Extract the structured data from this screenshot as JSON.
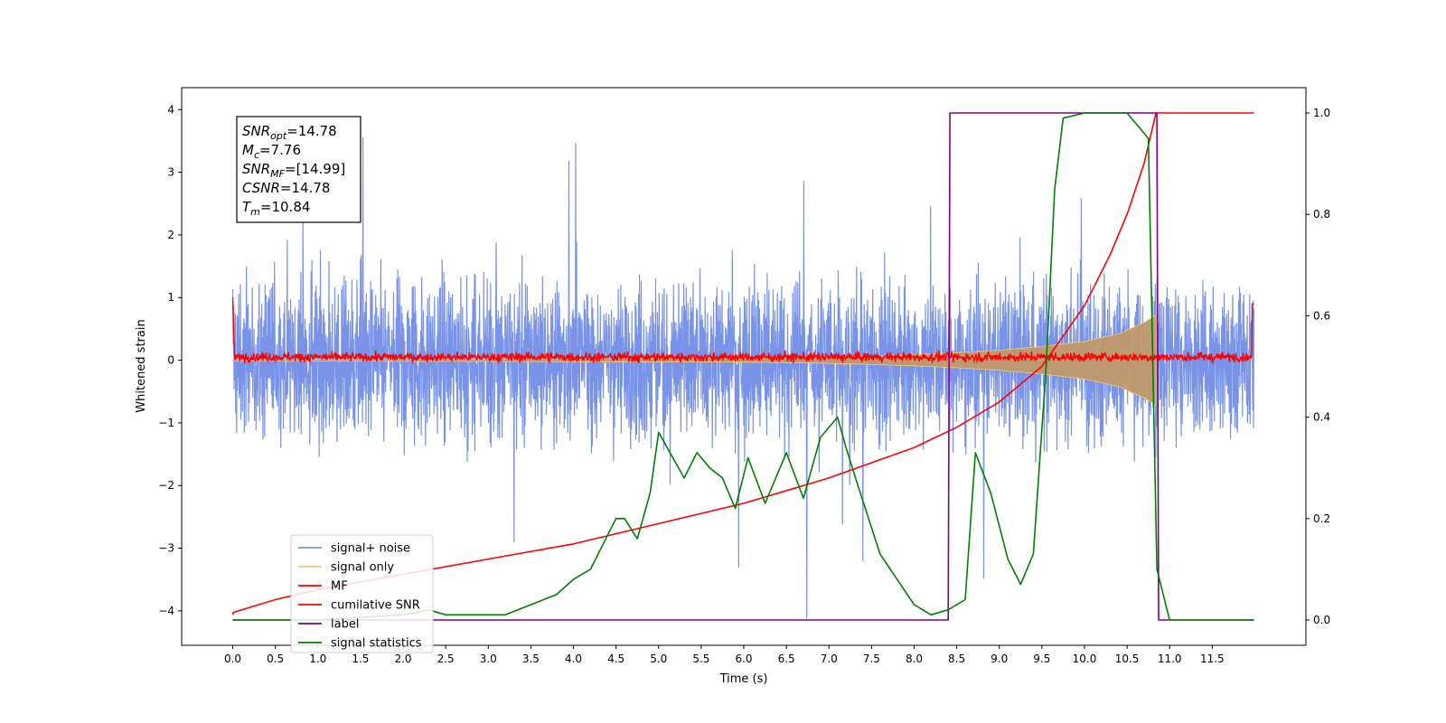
{
  "chart_data": {
    "type": "line",
    "xlabel": "Time (s)",
    "ylabel": "Whitened strain",
    "xlim": [
      -0.6,
      12.6
    ],
    "ylim": [
      -4.55,
      4.35
    ],
    "ylim_right": [
      -0.05,
      1.05
    ],
    "x_ticks": [
      0.0,
      0.5,
      1.0,
      1.5,
      2.0,
      2.5,
      3.0,
      3.5,
      4.0,
      4.5,
      5.0,
      5.5,
      6.0,
      6.5,
      7.0,
      7.5,
      8.0,
      8.5,
      9.0,
      9.5,
      10.0,
      10.5,
      11.0,
      11.5
    ],
    "x_tick_labels": [
      "0.0",
      "0.5",
      "1.0",
      "1.5",
      "2.0",
      "2.5",
      "3.0",
      "3.5",
      "4.0",
      "4.5",
      "5.0",
      "5.5",
      "6.0",
      "6.5",
      "7.0",
      "7.5",
      "8.0",
      "8.5",
      "9.0",
      "9.5",
      "10.0",
      "10.5",
      "11.0",
      "11.5"
    ],
    "y_ticks": [
      4,
      3,
      2,
      1,
      0,
      -1,
      -2,
      -3,
      -4
    ],
    "y_tick_labels": [
      "4",
      "3",
      "2",
      "1",
      "0",
      "−1",
      "−2",
      "−3",
      "−4"
    ],
    "y2_ticks": [
      1.0,
      0.8,
      0.6,
      0.4,
      0.2,
      0.0
    ],
    "y2_tick_labels": [
      "1.0",
      "0.8",
      "0.6",
      "0.4",
      "0.2",
      "0.0"
    ],
    "grid": false,
    "legend_placement": "lower-left",
    "annotation": {
      "lines": [
        {
          "base": "SNR",
          "sub": "opt",
          "rest": "=14.78"
        },
        {
          "base": "M",
          "sub": "c",
          "rest": "=7.76"
        },
        {
          "base": "SNR",
          "sub": "MF",
          "rest": "=[14.99]"
        },
        {
          "base": "CSNR",
          "sub": "",
          "rest": "=14.78"
        },
        {
          "base": "T",
          "sub": "m",
          "rest": "=10.84"
        }
      ]
    },
    "series": [
      {
        "name": "signal+ noise",
        "axis": "left",
        "color": "#7893e8",
        "note_envelope": {
          "upper_typical": 1.3,
          "lower_typical": -1.3,
          "peak_max": 3.98,
          "peak_min": -4.15
        }
      },
      {
        "name": "signal only",
        "axis": "left",
        "color": "#f5c97a",
        "envelope_x": [
          0.0,
          6.0,
          7.0,
          8.0,
          8.5,
          9.0,
          9.5,
          10.0,
          10.4,
          10.7,
          10.84
        ],
        "envelope_amp": [
          0.01,
          0.03,
          0.05,
          0.09,
          0.12,
          0.16,
          0.22,
          0.3,
          0.42,
          0.6,
          0.72
        ]
      },
      {
        "name": "MF",
        "axis": "left",
        "color": "#ff0000",
        "note_level": 0.05
      },
      {
        "name": "cumilative SNR",
        "axis": "right",
        "color": "#ff0000",
        "x": [
          0.0,
          0.01,
          0.5,
          1.0,
          2.0,
          3.0,
          4.0,
          5.0,
          6.0,
          7.0,
          8.0,
          8.5,
          9.0,
          9.5,
          10.0,
          10.3,
          10.5,
          10.7,
          10.84,
          11.0,
          11.5,
          11.99
        ],
        "values": [
          0.01,
          0.015,
          0.04,
          0.06,
          0.09,
          0.12,
          0.15,
          0.19,
          0.23,
          0.28,
          0.34,
          0.38,
          0.43,
          0.5,
          0.62,
          0.72,
          0.8,
          0.9,
          1.0,
          1.0,
          1.0,
          1.0
        ]
      },
      {
        "name": "label",
        "axis": "right",
        "color": "#800080",
        "x": [
          0.0,
          8.4,
          8.42,
          10.85,
          10.87,
          11.99
        ],
        "values": [
          0.0,
          0.0,
          1.0,
          1.0,
          0.0,
          0.0
        ]
      },
      {
        "name": "signal statistics",
        "axis": "right",
        "color": "#008000",
        "x": [
          0.0,
          1.0,
          2.0,
          2.3,
          2.5,
          3.0,
          3.2,
          3.5,
          3.8,
          4.0,
          4.2,
          4.35,
          4.5,
          4.6,
          4.75,
          4.9,
          5.0,
          5.1,
          5.3,
          5.45,
          5.6,
          5.75,
          5.9,
          6.05,
          6.25,
          6.5,
          6.7,
          6.9,
          7.1,
          7.2,
          7.35,
          7.6,
          8.0,
          8.2,
          8.4,
          8.6,
          8.72,
          8.9,
          9.1,
          9.25,
          9.4,
          9.55,
          9.65,
          9.75,
          10.0,
          10.2,
          10.5,
          10.75,
          10.85,
          11.0,
          11.99
        ],
        "values": [
          0.0,
          0.0,
          0.01,
          0.02,
          0.01,
          0.01,
          0.01,
          0.03,
          0.05,
          0.08,
          0.1,
          0.15,
          0.2,
          0.2,
          0.16,
          0.25,
          0.37,
          0.34,
          0.28,
          0.33,
          0.3,
          0.28,
          0.22,
          0.32,
          0.23,
          0.33,
          0.24,
          0.36,
          0.4,
          0.34,
          0.26,
          0.13,
          0.03,
          0.01,
          0.02,
          0.04,
          0.33,
          0.25,
          0.12,
          0.07,
          0.13,
          0.5,
          0.85,
          0.99,
          1.0,
          1.0,
          1.0,
          0.95,
          0.1,
          0.0,
          0.0
        ]
      }
    ]
  }
}
